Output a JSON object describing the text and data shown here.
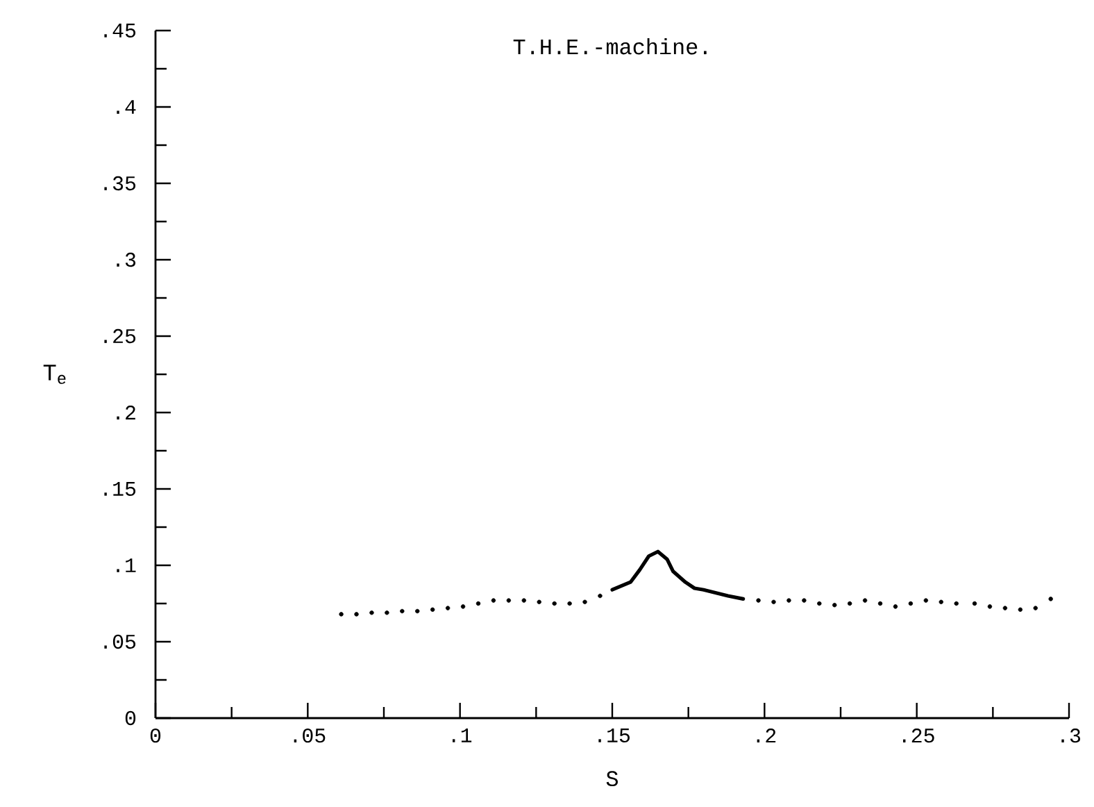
{
  "chart_data": {
    "type": "scatter",
    "title": "T.H.E.-machine.",
    "xlabel": "S",
    "ylabel": "T$_{e}$",
    "xlim": [
      0,
      0.3
    ],
    "ylim": [
      0,
      0.45
    ],
    "xticks": [
      {
        "value": 0,
        "label": "0"
      },
      {
        "value": 0.025,
        "label": null
      },
      {
        "value": 0.05,
        "label": ".05"
      },
      {
        "value": 0.075,
        "label": null
      },
      {
        "value": 0.1,
        "label": ".1"
      },
      {
        "value": 0.125,
        "label": null
      },
      {
        "value": 0.15,
        "label": ".15"
      },
      {
        "value": 0.175,
        "label": null
      },
      {
        "value": 0.2,
        "label": ".2"
      },
      {
        "value": 0.225,
        "label": null
      },
      {
        "value": 0.25,
        "label": ".25"
      },
      {
        "value": 0.275,
        "label": null
      },
      {
        "value": 0.3,
        "label": ".3"
      }
    ],
    "yticks": [
      {
        "value": 0,
        "label": "0"
      },
      {
        "value": 0.025,
        "label": null
      },
      {
        "value": 0.05,
        "label": ".05"
      },
      {
        "value": 0.075,
        "label": null
      },
      {
        "value": 0.1,
        "label": ".1"
      },
      {
        "value": 0.125,
        "label": null
      },
      {
        "value": 0.15,
        "label": ".15"
      },
      {
        "value": 0.175,
        "label": null
      },
      {
        "value": 0.2,
        "label": ".2"
      },
      {
        "value": 0.225,
        "label": null
      },
      {
        "value": 0.25,
        "label": ".25"
      },
      {
        "value": 0.275,
        "label": null
      },
      {
        "value": 0.3,
        "label": ".3"
      },
      {
        "value": 0.325,
        "label": null
      },
      {
        "value": 0.35,
        "label": ".35"
      },
      {
        "value": 0.375,
        "label": null
      },
      {
        "value": 0.4,
        "label": ".4"
      },
      {
        "value": 0.425,
        "label": null
      },
      {
        "value": 0.45,
        "label": ".45"
      }
    ],
    "series": [
      {
        "color": "#000000",
        "x": [
          0.061,
          0.066,
          0.071,
          0.076,
          0.081,
          0.086,
          0.091,
          0.096,
          0.101,
          0.106,
          0.111,
          0.116,
          0.121,
          0.126,
          0.131,
          0.136,
          0.141,
          0.146
        ],
        "values": [
          0.068,
          0.068,
          0.069,
          0.069,
          0.07,
          0.07,
          0.071,
          0.072,
          0.073,
          0.075,
          0.077,
          0.077,
          0.077,
          0.076,
          0.075,
          0.075,
          0.076,
          0.08
        ]
      },
      {
        "type": "line",
        "color": "#000000",
        "x": [
          0.15,
          0.156,
          0.159,
          0.162,
          0.165,
          0.168,
          0.17,
          0.174,
          0.177,
          0.18,
          0.188,
          0.193
        ],
        "values": [
          0.084,
          0.089,
          0.097,
          0.106,
          0.109,
          0.104,
          0.096,
          0.089,
          0.085,
          0.084,
          0.08,
          0.078
        ]
      },
      {
        "color": "#000000",
        "x": [
          0.198,
          0.203,
          0.208,
          0.213,
          0.218,
          0.223,
          0.228,
          0.233,
          0.238,
          0.243,
          0.248,
          0.253,
          0.258,
          0.263,
          0.269,
          0.274,
          0.279,
          0.284,
          0.289,
          0.294
        ],
        "values": [
          0.077,
          0.076,
          0.077,
          0.077,
          0.075,
          0.074,
          0.075,
          0.077,
          0.075,
          0.073,
          0.075,
          0.077,
          0.076,
          0.075,
          0.075,
          0.073,
          0.072,
          0.071,
          0.072,
          0.078
        ]
      }
    ]
  }
}
